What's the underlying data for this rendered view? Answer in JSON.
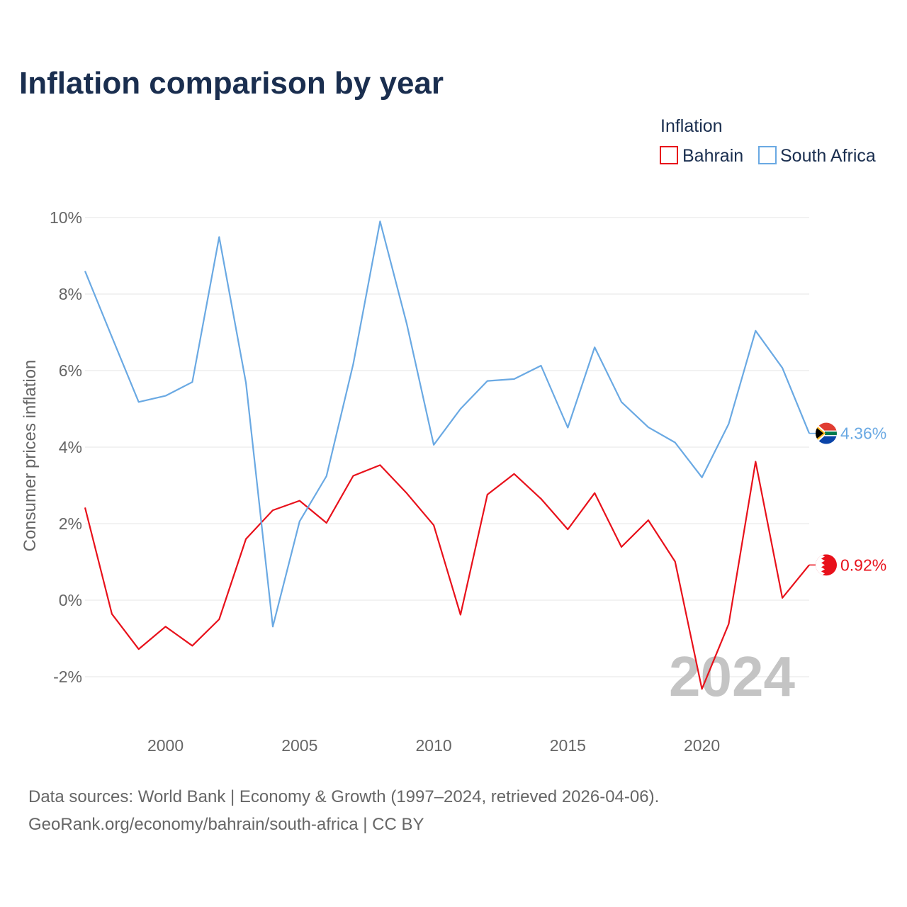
{
  "chart_data": {
    "type": "line",
    "title": "Inflation comparison by year",
    "legend_title": "Inflation",
    "legend_position": "top-right",
    "ylabel": "Consumer prices inflation",
    "xlabel": "",
    "xlim": [
      1997,
      2024
    ],
    "ylim": [
      -3,
      10.5
    ],
    "x_ticks": [
      2000,
      2005,
      2010,
      2015,
      2020
    ],
    "y_ticks": [
      -2,
      0,
      2,
      4,
      6,
      8,
      10
    ],
    "y_tick_labels": [
      "-2%",
      "0%",
      "2%",
      "4%",
      "6%",
      "8%",
      "10%"
    ],
    "grid": true,
    "highlight_year": "2024",
    "x": [
      1997,
      1998,
      1999,
      2000,
      2001,
      2002,
      2003,
      2004,
      2005,
      2006,
      2007,
      2008,
      2009,
      2010,
      2011,
      2012,
      2013,
      2014,
      2015,
      2016,
      2017,
      2018,
      2019,
      2020,
      2021,
      2022,
      2023,
      2024
    ],
    "series": [
      {
        "name": "Bahrain",
        "color": "#e8111b",
        "end_label": "0.92%",
        "flag_icon": "bahrain-flag-icon",
        "values": [
          2.42,
          -0.36,
          -1.28,
          -0.69,
          -1.19,
          -0.5,
          1.6,
          2.35,
          2.6,
          2.02,
          3.25,
          3.53,
          2.79,
          1.96,
          -0.38,
          2.76,
          3.3,
          2.65,
          1.85,
          2.8,
          1.39,
          2.09,
          1.01,
          -2.32,
          -0.62,
          3.62,
          0.06,
          0.92
        ]
      },
      {
        "name": "South Africa",
        "color": "#6aa9e3",
        "end_label": "4.36%",
        "flag_icon": "south-africa-flag-icon",
        "values": [
          8.6,
          6.88,
          5.18,
          5.34,
          5.7,
          9.49,
          5.68,
          -0.69,
          2.06,
          3.24,
          6.17,
          9.9,
          7.21,
          4.06,
          5.0,
          5.73,
          5.78,
          6.13,
          4.51,
          6.61,
          5.18,
          4.52,
          4.12,
          3.21,
          4.61,
          7.04,
          6.07,
          4.36
        ]
      }
    ]
  },
  "footer": {
    "source_line1": "Data sources: World Bank | Economy & Growth (1997–2024, retrieved 2026-04-06).",
    "source_line2": "GeoRank.org/economy/bahrain/south-africa | CC BY"
  }
}
